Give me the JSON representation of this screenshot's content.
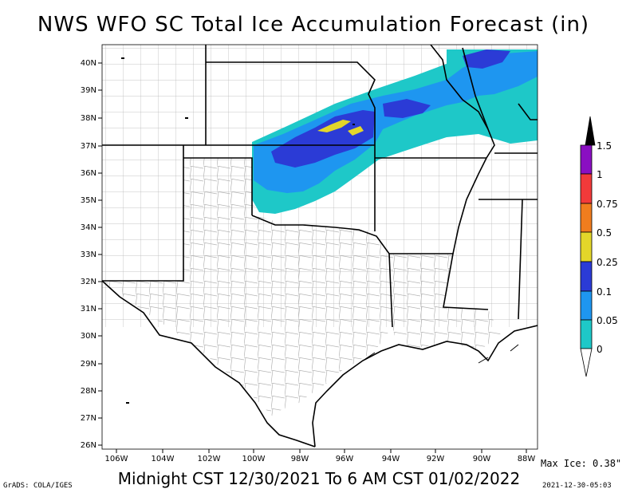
{
  "title": "NWS WFO SC Total Ice Accumulation Forecast (in)",
  "subtitle": "Midnight CST 12/30/2021 To 6 AM CST 01/02/2022",
  "max_ice": "Max Ice: 0.38\"",
  "credit": "GrADS: COLA/IGES",
  "timestamp": "2021-12-30-05:03",
  "lat_labels": [
    "40N",
    "39N",
    "38N",
    "37N",
    "36N",
    "35N",
    "34N",
    "33N",
    "32N",
    "31N",
    "30N",
    "29N",
    "28N",
    "27N",
    "26N"
  ],
  "lon_labels": [
    "106W",
    "104W",
    "102W",
    "100W",
    "98W",
    "96W",
    "94W",
    "92W",
    "90W",
    "88W"
  ],
  "legend": {
    "labels": [
      "1.5",
      "1",
      "0.75",
      "0.5",
      "0.25",
      "0.1",
      "0.05",
      "0"
    ],
    "colors": [
      "#000000",
      "#8a0fc2",
      "#f23a3a",
      "#f07d1e",
      "#e3d62a",
      "#2b3bd6",
      "#1e96f0",
      "#1ec8c8"
    ]
  },
  "colors": {
    "ice_0": "#1ec8c8",
    "ice_005": "#1e96f0",
    "ice_01": "#2b3bd6",
    "ice_025": "#e3d62a"
  }
}
